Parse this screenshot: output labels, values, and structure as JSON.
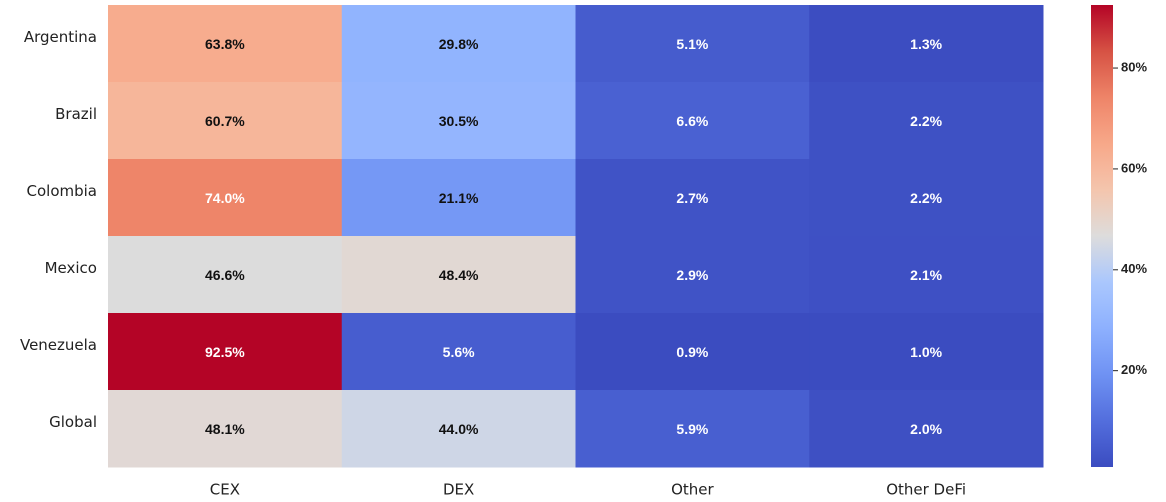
{
  "chart_data": {
    "type": "heatmap",
    "colormap": "coolwarm",
    "categories": [
      "CEX",
      "DEX",
      "Other",
      "Other DeFi"
    ],
    "rows": [
      "Argentina",
      "Brazil",
      "Colombia",
      "Mexico",
      "Venezuela",
      "Global"
    ],
    "values": [
      [
        63.8,
        29.8,
        5.1,
        1.3
      ],
      [
        60.7,
        30.5,
        6.6,
        2.2
      ],
      [
        74.0,
        21.1,
        2.7,
        2.2
      ],
      [
        46.6,
        48.4,
        2.9,
        2.1
      ],
      [
        92.5,
        5.6,
        0.9,
        1.0
      ],
      [
        48.1,
        44.0,
        5.9,
        2.0
      ]
    ],
    "value_labels": [
      [
        "63.8%",
        "29.8%",
        "5.1%",
        "1.3%"
      ],
      [
        "60.7%",
        "30.5%",
        "6.6%",
        "2.2%"
      ],
      [
        "74.0%",
        "21.1%",
        "2.7%",
        "2.2%"
      ],
      [
        "46.6%",
        "48.4%",
        "2.9%",
        "2.1%"
      ],
      [
        "92.5%",
        "5.6%",
        "0.9%",
        "1.0%"
      ],
      [
        "48.1%",
        "44.0%",
        "5.9%",
        "2.0%"
      ]
    ],
    "clim": [
      0.9,
      92.5
    ],
    "cticks": [
      {
        "value": 20,
        "label": "20%"
      },
      {
        "value": 40,
        "label": "40%"
      },
      {
        "value": 60,
        "label": "60%"
      },
      {
        "value": 80,
        "label": "80%"
      }
    ]
  }
}
